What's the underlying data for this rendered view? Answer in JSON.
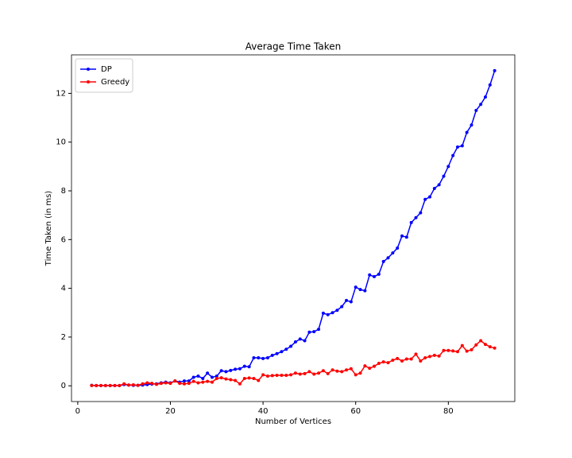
{
  "chart_data": {
    "type": "line",
    "title": "Average Time Taken",
    "xlabel": "Number of Vertices",
    "ylabel": "Time Taken (in ms)",
    "x": [
      3,
      4,
      5,
      6,
      7,
      8,
      9,
      10,
      11,
      12,
      13,
      14,
      15,
      16,
      17,
      18,
      19,
      20,
      21,
      22,
      23,
      24,
      25,
      26,
      27,
      28,
      29,
      30,
      31,
      32,
      33,
      34,
      35,
      36,
      37,
      38,
      39,
      40,
      41,
      42,
      43,
      44,
      45,
      46,
      47,
      48,
      49,
      50,
      51,
      52,
      53,
      54,
      55,
      56,
      57,
      58,
      59,
      60,
      61,
      62,
      63,
      64,
      65,
      66,
      67,
      68,
      69,
      70,
      71,
      72,
      73,
      74,
      75,
      76,
      77,
      78,
      79,
      80,
      81,
      82,
      83,
      84,
      85,
      86,
      87,
      88,
      89,
      90
    ],
    "series": [
      {
        "name": "DP",
        "color": "#0000ff",
        "values": [
          0.02,
          0.01,
          0.01,
          0.01,
          0.01,
          0.01,
          0.01,
          0.05,
          0.03,
          0.02,
          0.02,
          0.03,
          0.05,
          0.07,
          0.08,
          0.12,
          0.15,
          0.12,
          0.2,
          0.15,
          0.2,
          0.2,
          0.35,
          0.4,
          0.3,
          0.52,
          0.35,
          0.4,
          0.62,
          0.58,
          0.63,
          0.68,
          0.7,
          0.8,
          0.78,
          1.15,
          1.15,
          1.12,
          1.15,
          1.25,
          1.32,
          1.4,
          1.5,
          1.62,
          1.8,
          1.92,
          1.85,
          2.2,
          2.22,
          2.32,
          2.98,
          2.92,
          3.0,
          3.1,
          3.25,
          3.5,
          3.45,
          4.05,
          3.95,
          3.9,
          4.55,
          4.48,
          4.58,
          5.1,
          5.25,
          5.45,
          5.65,
          6.15,
          6.1,
          6.7,
          6.9,
          7.1,
          7.65,
          7.75,
          8.1,
          8.25,
          8.6,
          9.0,
          9.45,
          9.8,
          9.85,
          10.4,
          10.7,
          11.3,
          11.55,
          11.85,
          12.35,
          12.93
        ]
      },
      {
        "name": "Greedy",
        "color": "#ff0000",
        "values": [
          0.01,
          0.01,
          0.01,
          0.01,
          0.01,
          0.01,
          0.01,
          0.08,
          0.03,
          0.04,
          0.02,
          0.08,
          0.12,
          0.1,
          0.06,
          0.1,
          0.12,
          0.1,
          0.2,
          0.1,
          0.08,
          0.1,
          0.18,
          0.12,
          0.15,
          0.18,
          0.15,
          0.3,
          0.33,
          0.28,
          0.25,
          0.22,
          0.08,
          0.3,
          0.32,
          0.3,
          0.22,
          0.45,
          0.4,
          0.42,
          0.43,
          0.43,
          0.43,
          0.45,
          0.52,
          0.48,
          0.5,
          0.58,
          0.48,
          0.52,
          0.62,
          0.5,
          0.65,
          0.6,
          0.58,
          0.65,
          0.7,
          0.45,
          0.52,
          0.82,
          0.72,
          0.8,
          0.92,
          0.98,
          0.95,
          1.05,
          1.12,
          1.02,
          1.1,
          1.1,
          1.3,
          1.02,
          1.15,
          1.2,
          1.25,
          1.22,
          1.45,
          1.45,
          1.43,
          1.4,
          1.65,
          1.42,
          1.48,
          1.68,
          1.85,
          1.7,
          1.6,
          1.55
        ]
      }
    ],
    "xlim": [
      -1.35,
      94.35
    ],
    "ylim": [
      -0.646,
      13.58
    ],
    "xticks": [
      0,
      20,
      40,
      60,
      80
    ],
    "yticks": [
      0,
      2,
      4,
      6,
      8,
      10,
      12
    ],
    "legend": "upper left",
    "grid": false
  }
}
